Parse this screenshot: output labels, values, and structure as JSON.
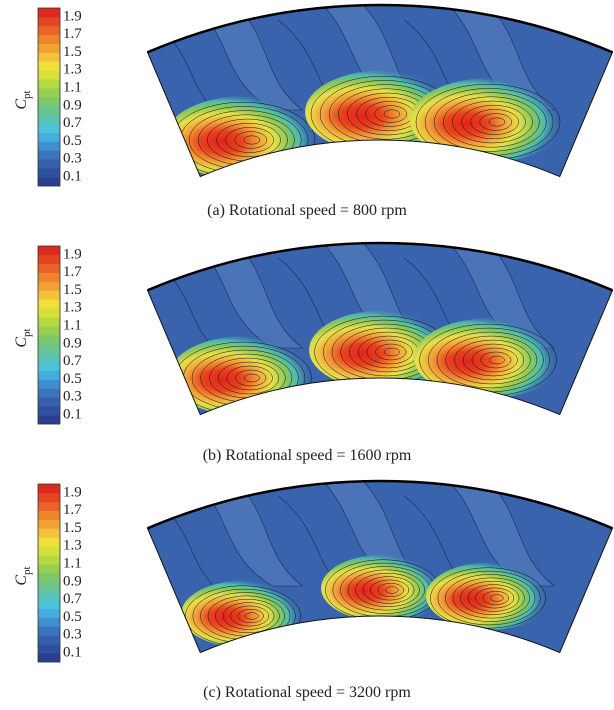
{
  "panels": [
    {
      "caption": "(a)  Rotational speed = 800 rpm",
      "colorbar_label": "C",
      "colorbar_label_sub": "pt",
      "range": [
        0,
        2
      ],
      "ticks": [
        1.9,
        1.7,
        1.5,
        1.3,
        1.1,
        0.9,
        0.7,
        0.5,
        0.3,
        0.1
      ]
    },
    {
      "caption": "(b)  Rotational speed = 1600 rpm",
      "colorbar_label": "C",
      "colorbar_label_sub": "pt",
      "range": [
        0,
        2
      ],
      "ticks": [
        1.9,
        1.7,
        1.5,
        1.3,
        1.1,
        0.9,
        0.7,
        0.5,
        0.3,
        0.1
      ]
    },
    {
      "caption": "(c)  Rotational speed = 3200 rpm",
      "colorbar_label": "C",
      "colorbar_label_sub": "pt",
      "range": [
        0,
        2
      ],
      "ticks": [
        1.9,
        1.7,
        1.5,
        1.3,
        1.1,
        0.9,
        0.7,
        0.5,
        0.3,
        0.1
      ]
    }
  ]
}
